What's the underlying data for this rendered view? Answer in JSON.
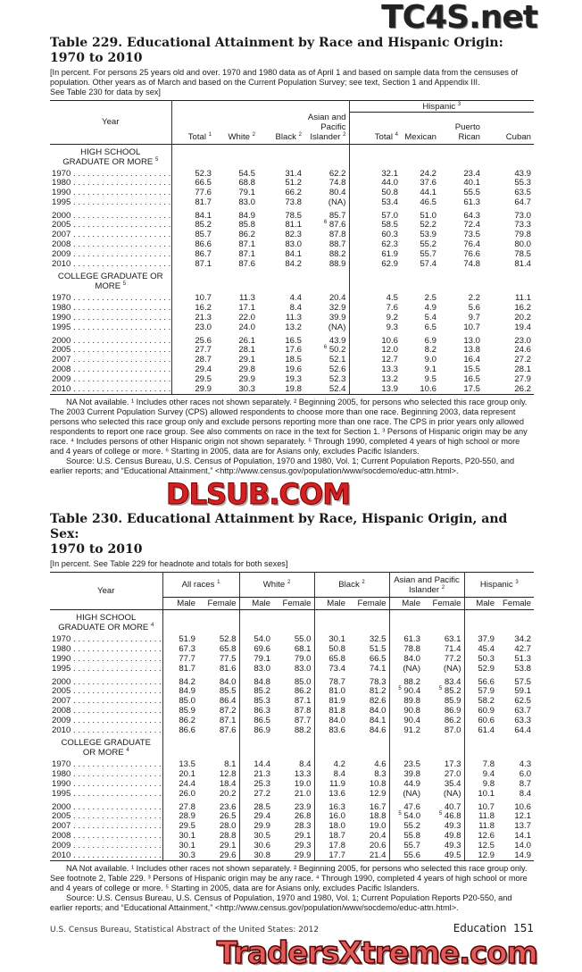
{
  "watermarks": {
    "top": "TC4S.net",
    "middle": "DLSUB.COM",
    "bottom": "TradersXtreme.com"
  },
  "table229": {
    "title_line1": "Table 229. Educational Attainment by Race and Hispanic Origin:",
    "title_line2": "1970 to 2010",
    "headnote": [
      "[In percent. For persons 25 years old and over. 1970 and 1980 data as of April 1 and based on sample data from the censuses of",
      "population. Other years as of March and based on the Current Population Survey; see text, Section 1 and Appendix III.",
      "See Table 230 for data by sex]"
    ],
    "year_header": "Year",
    "hispanic_header": {
      "label": "Hispanic",
      "note": "3"
    },
    "columns": [
      {
        "label": "Total",
        "note": "1"
      },
      {
        "label": "White",
        "note": "2"
      },
      {
        "label": "Black",
        "note": "2"
      },
      {
        "label": "Asian and Pacific Islander",
        "note": "2"
      },
      {
        "label": "Total",
        "note": "4"
      },
      {
        "label": "Mexican",
        "note": ""
      },
      {
        "label": "Puerto Rican",
        "note": ""
      },
      {
        "label": "Cuban",
        "note": ""
      }
    ],
    "sections": [
      {
        "label": "HIGH SCHOOL GRADUATE OR MORE",
        "note": "5",
        "rows": [
          {
            "year": "1970",
            "values": [
              "52.3",
              "54.5",
              "31.4",
              "62.2",
              "32.1",
              "24.2",
              "23.4",
              "43.9"
            ]
          },
          {
            "year": "1980",
            "values": [
              "66.5",
              "68.8",
              "51.2",
              "74.8",
              "44.0",
              "37.6",
              "40.1",
              "55.3"
            ]
          },
          {
            "year": "1990",
            "values": [
              "77.6",
              "79.1",
              "66.2",
              "80.4",
              "50.8",
              "44.1",
              "55.5",
              "63.5"
            ]
          },
          {
            "year": "1995",
            "values": [
              "81.7",
              "83.0",
              "73.8",
              "(NA)",
              "53.4",
              "46.5",
              "61.3",
              "64.7"
            ]
          },
          {
            "year": "2000",
            "values": [
              "84.1",
              "84.9",
              "78.5",
              "85.7",
              "57.0",
              "51.0",
              "64.3",
              "73.0"
            ]
          },
          {
            "year": "2005",
            "values": [
              "85.2",
              "85.8",
              "81.1",
              [
                "6",
                "87.6"
              ],
              "58.5",
              "52.2",
              "72.4",
              "73.3"
            ]
          },
          {
            "year": "2007",
            "values": [
              "85.7",
              "86.2",
              "82.3",
              "87.8",
              "60.3",
              "53.9",
              "73.5",
              "79.8"
            ]
          },
          {
            "year": "2008",
            "values": [
              "86.6",
              "87.1",
              "83.0",
              "88.7",
              "62.3",
              "55.2",
              "76.4",
              "80.0"
            ]
          },
          {
            "year": "2009",
            "values": [
              "86.7",
              "87.1",
              "84.1",
              "88.2",
              "61.9",
              "55.7",
              "76.6",
              "78.5"
            ]
          },
          {
            "year": "2010",
            "values": [
              "87.1",
              "87.6",
              "84.2",
              "88.9",
              "62.9",
              "57.4",
              "74.8",
              "81.4"
            ]
          }
        ]
      },
      {
        "label": "COLLEGE GRADUATE OR MORE",
        "note": "5",
        "rows": [
          {
            "year": "1970",
            "values": [
              "10.7",
              "11.3",
              "4.4",
              "20.4",
              "4.5",
              "2.5",
              "2.2",
              "11.1"
            ]
          },
          {
            "year": "1980",
            "values": [
              "16.2",
              "17.1",
              "8.4",
              "32.9",
              "7.6",
              "4.9",
              "5.6",
              "16.2"
            ]
          },
          {
            "year": "1990",
            "values": [
              "21.3",
              "22.0",
              "11.3",
              "39.9",
              "9.2",
              "5.4",
              "9.7",
              "20.2"
            ]
          },
          {
            "year": "1995",
            "values": [
              "23.0",
              "24.0",
              "13.2",
              "(NA)",
              "9.3",
              "6.5",
              "10.7",
              "19.4"
            ]
          },
          {
            "year": "2000",
            "values": [
              "25.6",
              "26.1",
              "16.5",
              "43.9",
              "10.6",
              "6.9",
              "13.0",
              "23.0"
            ]
          },
          {
            "year": "2005",
            "values": [
              "27.7",
              "28.1",
              "17.6",
              [
                "6",
                "50.2"
              ],
              "12.0",
              "8.2",
              "13.8",
              "24.6"
            ]
          },
          {
            "year": "2007",
            "values": [
              "28.7",
              "29.1",
              "18.5",
              "52.1",
              "12.7",
              "9.0",
              "16.4",
              "27.2"
            ]
          },
          {
            "year": "2008",
            "values": [
              "29.4",
              "29.8",
              "19.6",
              "52.6",
              "13.3",
              "9.1",
              "15.5",
              "28.1"
            ]
          },
          {
            "year": "2009",
            "values": [
              "29.5",
              "29.9",
              "19.3",
              "52.3",
              "13.2",
              "9.5",
              "16.5",
              "27.9"
            ]
          },
          {
            "year": "2010",
            "values": [
              "29.9",
              "30.3",
              "19.8",
              "52.4",
              "13.9",
              "10.6",
              "17.5",
              "26.2"
            ]
          }
        ]
      }
    ],
    "footnotes": "NA Not available. ¹ Includes other races not shown separately. ² Beginning 2005, for persons who selected this race group only. The 2003 Current Population Survey (CPS) allowed respondents to choose more than one race. Beginning 2003, data represent persons who selected this race group only and exclude persons reporting more than one race. The CPS in prior years only allowed respondents to report one race group. See also comments on race in the text for Section 1. ³ Persons of Hispanic origin may be any race. ⁴ Includes persons of other Hispanic origin not shown separately. ⁵ Through 1990, completed 4 years of high school or more and 4 years of college or more. ⁶ Starting in 2005, data are for Asians only, excludes Pacific Islanders.",
    "source": "Source: U.S. Census Bureau, U.S. Census of Population, 1970 and 1980, Vol. 1; Current Population Reports, P20-550, and earlier reports; and “Educational Attainment,” <http://www.census.gov/population/www/socdemo/educ-attn.html>."
  },
  "table230": {
    "title_line1": "Table 230. Educational Attainment by Race, Hispanic Origin, and Sex:",
    "title_line2": "1970 to 2010",
    "headnote": "[In percent. See Table 229 for headnote and totals for both sexes]",
    "year_header": "Year",
    "groups": [
      {
        "label": "All races",
        "note": "1"
      },
      {
        "label": "White",
        "note": "2"
      },
      {
        "label": "Black",
        "note": "2"
      },
      {
        "label": "Asian and Pacific Islander",
        "note": "2"
      },
      {
        "label": "Hispanic",
        "note": "3"
      }
    ],
    "sub_labels": [
      "Male",
      "Female"
    ],
    "sections": [
      {
        "label": "HIGH SCHOOL GRADUATE OR MORE",
        "note": "4",
        "rows": [
          {
            "year": "1970",
            "values": [
              "51.9",
              "52.8",
              "54.0",
              "55.0",
              "30.1",
              "32.5",
              "61.3",
              "63.1",
              "37.9",
              "34.2"
            ]
          },
          {
            "year": "1980",
            "values": [
              "67.3",
              "65.8",
              "69.6",
              "68.1",
              "50.8",
              "51.5",
              "78.8",
              "71.4",
              "45.4",
              "42.7"
            ]
          },
          {
            "year": "1990",
            "values": [
              "77.7",
              "77.5",
              "79.1",
              "79.0",
              "65.8",
              "66.5",
              "84.0",
              "77.2",
              "50.3",
              "51.3"
            ]
          },
          {
            "year": "1995",
            "values": [
              "81.7",
              "81.6",
              "83.0",
              "83.0",
              "73.4",
              "74.1",
              "(NA)",
              "(NA)",
              "52.9",
              "53.8"
            ]
          },
          {
            "year": "2000",
            "values": [
              "84.2",
              "84.0",
              "84.8",
              "85.0",
              "78.7",
              "78.3",
              "88.2",
              "83.4",
              "56.6",
              "57.5"
            ]
          },
          {
            "year": "2005",
            "values": [
              "84.9",
              "85.5",
              "85.2",
              "86.2",
              "81.0",
              "81.2",
              [
                "5",
                "90.4"
              ],
              [
                "5",
                "85.2"
              ],
              "57.9",
              "59.1"
            ]
          },
          {
            "year": "2007",
            "values": [
              "85.0",
              "86.4",
              "85.3",
              "87.1",
              "81.9",
              "82.6",
              "89.8",
              "85.9",
              "58.2",
              "62.5"
            ]
          },
          {
            "year": "2008",
            "values": [
              "85.9",
              "87.2",
              "86.3",
              "87.8",
              "81.8",
              "84.0",
              "90.8",
              "86.9",
              "60.9",
              "63.7"
            ]
          },
          {
            "year": "2009",
            "values": [
              "86.2",
              "87.1",
              "86.5",
              "87.7",
              "84.0",
              "84.1",
              "90.4",
              "86.2",
              "60.6",
              "63.3"
            ]
          },
          {
            "year": "2010",
            "values": [
              "86.6",
              "87.6",
              "86.9",
              "88.2",
              "83.6",
              "84.6",
              "91.2",
              "87.0",
              "61.4",
              "64.4"
            ]
          }
        ]
      },
      {
        "label": "COLLEGE GRADUATE OR MORE",
        "note": "4",
        "rows": [
          {
            "year": "1970",
            "values": [
              "13.5",
              "8.1",
              "14.4",
              "8.4",
              "4.2",
              "4.6",
              "23.5",
              "17.3",
              "7.8",
              "4.3"
            ]
          },
          {
            "year": "1980",
            "values": [
              "20.1",
              "12.8",
              "21.3",
              "13.3",
              "8.4",
              "8.3",
              "39.8",
              "27.0",
              "9.4",
              "6.0"
            ]
          },
          {
            "year": "1990",
            "values": [
              "24.4",
              "18.4",
              "25.3",
              "19.0",
              "11.9",
              "10.8",
              "44.9",
              "35.4",
              "9.8",
              "8.7"
            ]
          },
          {
            "year": "1995",
            "values": [
              "26.0",
              "20.2",
              "27.2",
              "21.0",
              "13.6",
              "12.9",
              "(NA)",
              "(NA)",
              "10.1",
              "8.4"
            ]
          },
          {
            "year": "2000",
            "values": [
              "27.8",
              "23.6",
              "28.5",
              "23.9",
              "16.3",
              "16.7",
              "47.6",
              "40.7",
              "10.7",
              "10.6"
            ]
          },
          {
            "year": "2005",
            "values": [
              "28.9",
              "26.5",
              "29.4",
              "26.8",
              "16.0",
              "18.8",
              [
                "5",
                "54.0"
              ],
              [
                "5",
                "46.8"
              ],
              "11.8",
              "12.1"
            ]
          },
          {
            "year": "2007",
            "values": [
              "29.5",
              "28.0",
              "29.9",
              "28.3",
              "18.0",
              "19.0",
              "55.2",
              "49.3",
              "11.8",
              "13.7"
            ]
          },
          {
            "year": "2008",
            "values": [
              "30.1",
              "28.8",
              "30.5",
              "29.1",
              "18.7",
              "20.4",
              "55.8",
              "49.8",
              "12.6",
              "14.1"
            ]
          },
          {
            "year": "2009",
            "values": [
              "30.1",
              "29.1",
              "30.6",
              "29.3",
              "17.8",
              "20.6",
              "55.7",
              "49.3",
              "12.5",
              "14.0"
            ]
          },
          {
            "year": "2010",
            "values": [
              "30.3",
              "29.6",
              "30.8",
              "29.9",
              "17.7",
              "21.4",
              "55.6",
              "49.5",
              "12.9",
              "14.9"
            ]
          }
        ]
      }
    ],
    "footnotes": "NA Not available. ¹ Includes other races not shown separately. ² Beginning 2005, for persons who selected this race group only. See footnote 2, Table 229. ³ Persons of Hispanic origin may be any race. ⁴ Through 1990, completed 4 years of high school or more and 4 years of college or more. ⁵ Starting in 2005, data are for Asians only, excludes Pacific Islanders.",
    "source": "Source: U.S. Census Bureau, U.S. Census of Population, 1970 and 1980, Vol. 1; Current Population Reports P20-550, and earlier reports; and “Educational Attainment,” <http://www.census.gov/population/www/socdemo/educ-attn.html>."
  },
  "footer": {
    "left": "U.S. Census Bureau, Statistical Abstract of the United States: 2012",
    "section": "Education",
    "page": "151"
  }
}
